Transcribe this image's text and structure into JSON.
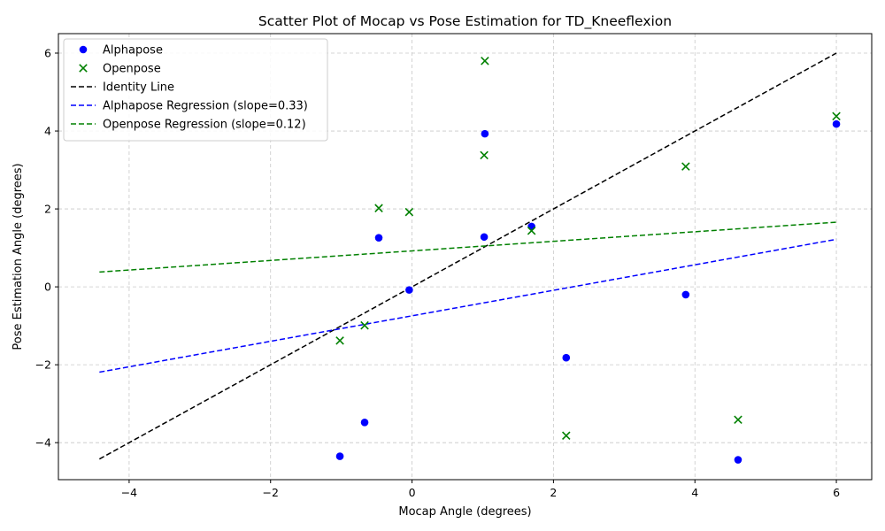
{
  "chart_data": {
    "type": "scatter",
    "title": "Scatter Plot of Mocap vs Pose Estimation for TD_Kneeflexion",
    "xlabel": "Mocap Angle (degrees)",
    "ylabel": "Pose Estimation Angle (degrees)",
    "xlim": [
      -5.0,
      6.5
    ],
    "ylim": [
      -4.95,
      6.5
    ],
    "xticks": [
      -4,
      -2,
      0,
      2,
      4,
      6
    ],
    "yticks": [
      -4,
      -2,
      0,
      2,
      4,
      6
    ],
    "xtick_labels": [
      "−4",
      "−2",
      "0",
      "2",
      "4",
      "6"
    ],
    "ytick_labels": [
      "−4",
      "−2",
      "0",
      "2",
      "4",
      "6"
    ],
    "grid": true,
    "legend_position": "top-left",
    "series": [
      {
        "name": "Alphapose",
        "kind": "scatter",
        "marker": "circle",
        "color": "#0000ff",
        "points": [
          [
            -1.02,
            -4.35
          ],
          [
            -0.67,
            -3.48
          ],
          [
            -0.47,
            1.26
          ],
          [
            -0.04,
            -0.08
          ],
          [
            1.02,
            1.28
          ],
          [
            1.03,
            3.93
          ],
          [
            1.69,
            1.55
          ],
          [
            2.18,
            -1.82
          ],
          [
            3.87,
            -0.2
          ],
          [
            4.61,
            -4.44
          ],
          [
            6.0,
            4.18
          ]
        ]
      },
      {
        "name": "Openpose",
        "kind": "scatter",
        "marker": "x",
        "color": "#008000",
        "points": [
          [
            -1.02,
            -1.38
          ],
          [
            -0.67,
            -0.99
          ],
          [
            -0.47,
            2.02
          ],
          [
            -0.04,
            1.92
          ],
          [
            1.02,
            3.38
          ],
          [
            1.03,
            5.8
          ],
          [
            1.69,
            1.44
          ],
          [
            2.18,
            -3.82
          ],
          [
            3.87,
            3.09
          ],
          [
            4.61,
            -3.41
          ],
          [
            6.0,
            4.38
          ]
        ]
      },
      {
        "name": "Identity Line",
        "kind": "line",
        "dash": true,
        "color": "#000000",
        "x": [
          -4.42,
          6.0
        ],
        "y": [
          -4.42,
          6.0
        ]
      },
      {
        "name": "Alphapose Regression (slope=0.33)",
        "kind": "line",
        "dash": true,
        "color": "#0000ff",
        "x": [
          -4.42,
          6.0
        ],
        "y": [
          -2.19,
          1.22
        ]
      },
      {
        "name": "Openpose Regression (slope=0.12)",
        "kind": "line",
        "dash": true,
        "color": "#008000",
        "x": [
          -4.42,
          6.0
        ],
        "y": [
          0.38,
          1.66
        ]
      }
    ]
  }
}
